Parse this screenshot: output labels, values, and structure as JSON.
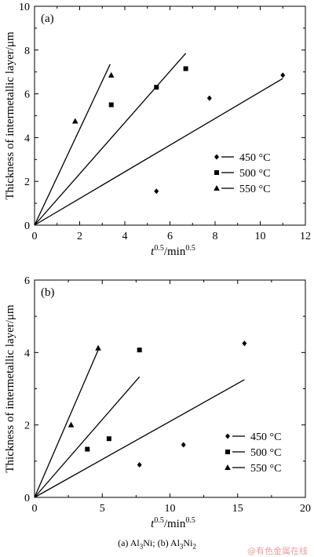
{
  "chart_data": [
    {
      "type": "scatter",
      "panel_label": "(a)",
      "xlabel_base": "t",
      "xlabel_sup": "0.5",
      "xlabel_rest": "/min",
      "xlabel_sup2": "0.5",
      "ylabel": "Thickness of intermetallic layer/μm",
      "xlim": [
        0,
        12
      ],
      "ylim": [
        0,
        10
      ],
      "xticks": [
        0,
        2,
        4,
        6,
        8,
        10,
        12
      ],
      "yticks": [
        0,
        2,
        4,
        6,
        8,
        10
      ],
      "legend_position": "right",
      "series": [
        {
          "name": "450 °C",
          "marker": "diamond",
          "points": [
            [
              5.4,
              1.55
            ],
            [
              7.75,
              5.8
            ],
            [
              11.0,
              6.85
            ]
          ],
          "fit": [
            [
              0,
              0
            ],
            [
              11.0,
              6.7
            ]
          ]
        },
        {
          "name": "500 °C",
          "marker": "square",
          "points": [
            [
              3.4,
              5.5
            ],
            [
              5.4,
              6.3
            ],
            [
              6.7,
              7.15
            ]
          ],
          "fit": [
            [
              0,
              0
            ],
            [
              6.7,
              7.85
            ]
          ]
        },
        {
          "name": "550 °C",
          "marker": "triangle",
          "points": [
            [
              1.8,
              4.75
            ],
            [
              3.4,
              6.85
            ]
          ],
          "fit": [
            [
              0,
              0
            ],
            [
              3.35,
              7.35
            ]
          ]
        }
      ]
    },
    {
      "type": "scatter",
      "panel_label": "(b)",
      "xlabel_base": "t",
      "xlabel_sup": "0.5",
      "xlabel_rest": "/min",
      "xlabel_sup2": "0.5",
      "ylabel": "Thickness of intermetallic layer/μm",
      "xlim": [
        0,
        20
      ],
      "ylim": [
        0,
        6
      ],
      "xticks": [
        0,
        5,
        10,
        15,
        20
      ],
      "yticks": [
        0,
        2,
        4,
        6
      ],
      "legend_position": "right",
      "series": [
        {
          "name": "450 °C",
          "marker": "diamond",
          "points": [
            [
              7.75,
              0.9
            ],
            [
              11.0,
              1.45
            ],
            [
              15.5,
              4.25
            ]
          ],
          "fit": [
            [
              0,
              0
            ],
            [
              15.5,
              3.25
            ]
          ]
        },
        {
          "name": "500 °C",
          "marker": "square",
          "points": [
            [
              3.9,
              1.33
            ],
            [
              5.5,
              1.62
            ],
            [
              7.75,
              4.07
            ]
          ],
          "fit": [
            [
              0,
              0
            ],
            [
              7.75,
              3.33
            ]
          ]
        },
        {
          "name": "550 °C",
          "marker": "triangle",
          "points": [
            [
              2.7,
              2.0
            ],
            [
              4.7,
              4.12
            ]
          ],
          "fit": [
            [
              0,
              0
            ],
            [
              4.7,
              4.07
            ]
          ]
        }
      ]
    }
  ],
  "caption": {
    "part_a": "(a) Al",
    "sub_a": "3",
    "part_a2": "Ni; (b) Al",
    "sub_b": "3",
    "part_b2": "Ni",
    "sub_c": "2"
  },
  "watermark": "@有色金属在线"
}
